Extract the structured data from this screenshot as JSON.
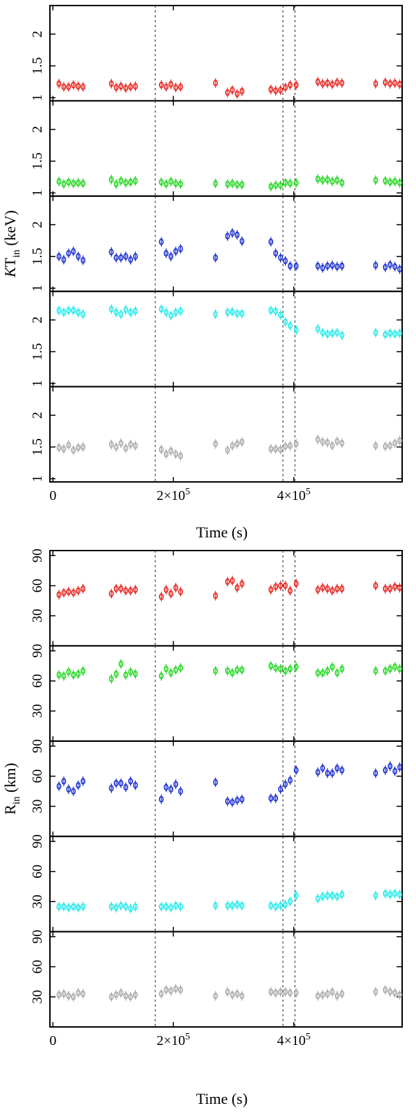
{
  "chart_data": [
    {
      "type": "scatter",
      "title": "",
      "xlabel": "Time (s)",
      "ylabel": {
        "prefix": "K",
        "main": "T",
        "sub": "in",
        "unit": " (keV)"
      },
      "xlim": [
        -5000,
        580000
      ],
      "ylim": [
        0.95,
        2.45
      ],
      "xticks": [
        {
          "value": 0,
          "label": "0",
          "exp": ""
        },
        {
          "value": 200000,
          "label": "2×10",
          "exp": "5"
        },
        {
          "value": 400000,
          "label": "4×10",
          "exp": "5"
        }
      ],
      "yticks": [
        {
          "value": 1,
          "label": "1"
        },
        {
          "value": 1.5,
          "label": "1.5"
        },
        {
          "value": 2,
          "label": "2"
        }
      ],
      "vlines": [
        170000,
        382000,
        402000
      ],
      "series": [
        {
          "name": "panel-1",
          "color": "#e8231e",
          "x": [
            10000,
            18000,
            26000,
            34000,
            42000,
            50000,
            97000,
            105000,
            113000,
            121000,
            129000,
            137000,
            180000,
            188000,
            196000,
            204000,
            212000,
            270000,
            290000,
            298000,
            306000,
            314000,
            362000,
            370000,
            378000,
            386000,
            394000,
            404000,
            440000,
            448000,
            456000,
            464000,
            472000,
            480000,
            536000,
            552000,
            560000,
            568000,
            576000
          ],
          "y": [
            1.22,
            1.17,
            1.17,
            1.2,
            1.18,
            1.17,
            1.22,
            1.16,
            1.18,
            1.15,
            1.17,
            1.18,
            1.2,
            1.17,
            1.21,
            1.16,
            1.17,
            1.23,
            1.08,
            1.12,
            1.06,
            1.1,
            1.13,
            1.11,
            1.12,
            1.16,
            1.2,
            1.2,
            1.25,
            1.22,
            1.23,
            1.21,
            1.24,
            1.23,
            1.22,
            1.24,
            1.22,
            1.23,
            1.21
          ]
        },
        {
          "name": "panel-2",
          "color": "#22d620",
          "x": [
            10000,
            18000,
            26000,
            34000,
            42000,
            50000,
            97000,
            105000,
            113000,
            121000,
            129000,
            137000,
            180000,
            188000,
            196000,
            204000,
            212000,
            270000,
            290000,
            298000,
            306000,
            314000,
            362000,
            370000,
            378000,
            386000,
            394000,
            404000,
            440000,
            448000,
            456000,
            464000,
            472000,
            480000,
            536000,
            552000,
            560000,
            568000,
            576000
          ],
          "y": [
            1.18,
            1.14,
            1.17,
            1.15,
            1.16,
            1.15,
            1.21,
            1.14,
            1.19,
            1.16,
            1.17,
            1.19,
            1.17,
            1.14,
            1.18,
            1.15,
            1.14,
            1.15,
            1.14,
            1.15,
            1.13,
            1.13,
            1.1,
            1.12,
            1.12,
            1.16,
            1.15,
            1.16,
            1.22,
            1.2,
            1.21,
            1.18,
            1.2,
            1.16,
            1.2,
            1.19,
            1.17,
            1.18,
            1.16
          ]
        },
        {
          "name": "panel-3",
          "color": "#1b2fd1",
          "x": [
            10000,
            18000,
            26000,
            34000,
            42000,
            50000,
            97000,
            105000,
            113000,
            121000,
            129000,
            137000,
            180000,
            188000,
            196000,
            204000,
            212000,
            270000,
            290000,
            298000,
            306000,
            314000,
            362000,
            370000,
            378000,
            386000,
            394000,
            404000,
            440000,
            448000,
            456000,
            464000,
            472000,
            480000,
            536000,
            552000,
            560000,
            568000,
            576000
          ],
          "y": [
            1.5,
            1.45,
            1.55,
            1.58,
            1.5,
            1.44,
            1.57,
            1.48,
            1.48,
            1.5,
            1.45,
            1.5,
            1.73,
            1.55,
            1.5,
            1.58,
            1.62,
            1.48,
            1.82,
            1.87,
            1.84,
            1.74,
            1.73,
            1.55,
            1.48,
            1.43,
            1.35,
            1.35,
            1.35,
            1.32,
            1.35,
            1.36,
            1.34,
            1.35,
            1.36,
            1.33,
            1.37,
            1.34,
            1.3
          ]
        },
        {
          "name": "panel-4",
          "color": "#21eaea",
          "x": [
            10000,
            18000,
            26000,
            34000,
            42000,
            50000,
            97000,
            105000,
            113000,
            121000,
            129000,
            137000,
            180000,
            188000,
            196000,
            204000,
            212000,
            270000,
            290000,
            298000,
            306000,
            314000,
            362000,
            370000,
            378000,
            386000,
            394000,
            404000,
            440000,
            448000,
            456000,
            464000,
            472000,
            480000,
            536000,
            552000,
            560000,
            568000,
            576000
          ],
          "y": [
            2.15,
            2.12,
            2.15,
            2.15,
            2.12,
            2.09,
            2.17,
            2.12,
            2.09,
            2.16,
            2.12,
            2.14,
            2.17,
            2.12,
            2.07,
            2.12,
            2.14,
            2.09,
            2.12,
            2.13,
            2.1,
            2.1,
            2.15,
            2.14,
            2.08,
            1.97,
            1.91,
            1.84,
            1.86,
            1.8,
            1.78,
            1.79,
            1.8,
            1.76,
            1.8,
            1.77,
            1.79,
            1.78,
            1.79
          ]
        },
        {
          "name": "panel-5",
          "color": "#a9a9a9",
          "x": [
            10000,
            18000,
            26000,
            34000,
            42000,
            50000,
            97000,
            105000,
            113000,
            121000,
            129000,
            137000,
            180000,
            188000,
            196000,
            204000,
            212000,
            270000,
            290000,
            298000,
            306000,
            314000,
            362000,
            370000,
            378000,
            386000,
            394000,
            404000,
            440000,
            448000,
            456000,
            464000,
            472000,
            480000,
            536000,
            552000,
            560000,
            568000,
            576000
          ],
          "y": [
            1.49,
            1.47,
            1.53,
            1.45,
            1.49,
            1.5,
            1.54,
            1.5,
            1.56,
            1.48,
            1.54,
            1.52,
            1.46,
            1.39,
            1.44,
            1.39,
            1.36,
            1.55,
            1.45,
            1.52,
            1.55,
            1.58,
            1.47,
            1.47,
            1.46,
            1.51,
            1.52,
            1.55,
            1.62,
            1.58,
            1.57,
            1.52,
            1.59,
            1.56,
            1.52,
            1.51,
            1.52,
            1.56,
            1.6
          ]
        }
      ]
    },
    {
      "type": "scatter",
      "title": "",
      "xlabel": "Time (s)",
      "ylabel": {
        "prefix": "",
        "main": "R",
        "sub": "in",
        "unit": " (km)"
      },
      "xlim": [
        -5000,
        580000
      ],
      "ylim": [
        0,
        95
      ],
      "xticks": [
        {
          "value": 0,
          "label": "0",
          "exp": ""
        },
        {
          "value": 200000,
          "label": "2×10",
          "exp": "5"
        },
        {
          "value": 400000,
          "label": "4×10",
          "exp": "5"
        }
      ],
      "yticks": [
        {
          "value": 30,
          "label": "30"
        },
        {
          "value": 60,
          "label": "60"
        },
        {
          "value": 90,
          "label": "90"
        }
      ],
      "vlines": [
        170000,
        382000,
        402000
      ],
      "series": [
        {
          "name": "panel-1",
          "color": "#e8231e",
          "x": [
            10000,
            18000,
            26000,
            34000,
            42000,
            50000,
            97000,
            105000,
            113000,
            121000,
            129000,
            137000,
            180000,
            188000,
            196000,
            204000,
            212000,
            270000,
            290000,
            298000,
            306000,
            314000,
            362000,
            370000,
            378000,
            386000,
            394000,
            404000,
            440000,
            448000,
            456000,
            464000,
            472000,
            480000,
            536000,
            552000,
            560000,
            568000,
            576000
          ],
          "y": [
            51,
            53,
            54,
            53,
            55,
            57,
            52,
            57,
            57,
            55,
            55,
            56,
            49,
            56,
            52,
            58,
            54,
            50,
            64,
            65,
            58,
            62,
            56,
            59,
            60,
            60,
            55,
            62,
            56,
            58,
            57,
            55,
            57,
            57,
            60,
            57,
            57,
            59,
            58
          ]
        },
        {
          "name": "panel-2",
          "color": "#22d620",
          "x": [
            10000,
            18000,
            26000,
            34000,
            42000,
            50000,
            97000,
            105000,
            113000,
            121000,
            129000,
            137000,
            180000,
            188000,
            196000,
            204000,
            212000,
            270000,
            290000,
            298000,
            306000,
            314000,
            362000,
            370000,
            378000,
            386000,
            394000,
            404000,
            440000,
            448000,
            456000,
            464000,
            472000,
            480000,
            536000,
            552000,
            560000,
            568000,
            576000
          ],
          "y": [
            66,
            65,
            69,
            66,
            67,
            70,
            62,
            67,
            77,
            66,
            69,
            67,
            65,
            72,
            68,
            71,
            73,
            70,
            70,
            68,
            71,
            71,
            75,
            73,
            72,
            70,
            72,
            74,
            68,
            68,
            70,
            74,
            68,
            72,
            70,
            70,
            72,
            74,
            72
          ]
        },
        {
          "name": "panel-3",
          "color": "#1b2fd1",
          "x": [
            10000,
            18000,
            26000,
            34000,
            42000,
            50000,
            97000,
            105000,
            113000,
            121000,
            129000,
            137000,
            180000,
            188000,
            196000,
            204000,
            212000,
            270000,
            290000,
            298000,
            306000,
            314000,
            362000,
            370000,
            378000,
            386000,
            394000,
            404000,
            440000,
            448000,
            456000,
            464000,
            472000,
            480000,
            536000,
            552000,
            560000,
            568000,
            576000
          ],
          "y": [
            50,
            55,
            47,
            45,
            51,
            55,
            48,
            53,
            53,
            49,
            55,
            51,
            37,
            49,
            47,
            52,
            45,
            54,
            35,
            34,
            36,
            37,
            38,
            38,
            47,
            52,
            56,
            66,
            64,
            68,
            63,
            63,
            68,
            66,
            63,
            66,
            70,
            65,
            69
          ]
        },
        {
          "name": "panel-4",
          "color": "#21eaea",
          "x": [
            10000,
            18000,
            26000,
            34000,
            42000,
            50000,
            97000,
            105000,
            113000,
            121000,
            129000,
            137000,
            180000,
            188000,
            196000,
            204000,
            212000,
            270000,
            290000,
            298000,
            306000,
            314000,
            362000,
            370000,
            378000,
            386000,
            394000,
            404000,
            440000,
            448000,
            456000,
            464000,
            472000,
            480000,
            536000,
            552000,
            560000,
            568000,
            576000
          ],
          "y": [
            25,
            25,
            24,
            25,
            24,
            25,
            25,
            24,
            26,
            25,
            23,
            25,
            25,
            25,
            24,
            26,
            25,
            26,
            26,
            26,
            27,
            26,
            26,
            25,
            26,
            27,
            30,
            36,
            33,
            35,
            36,
            36,
            35,
            37,
            36,
            38,
            37,
            38,
            37
          ]
        },
        {
          "name": "panel-5",
          "color": "#a9a9a9",
          "x": [
            10000,
            18000,
            26000,
            34000,
            42000,
            50000,
            97000,
            105000,
            113000,
            121000,
            129000,
            137000,
            180000,
            188000,
            196000,
            204000,
            212000,
            270000,
            290000,
            298000,
            306000,
            314000,
            362000,
            370000,
            378000,
            386000,
            394000,
            404000,
            440000,
            448000,
            456000,
            464000,
            472000,
            480000,
            536000,
            552000,
            560000,
            568000,
            576000
          ],
          "y": [
            32,
            33,
            31,
            30,
            34,
            33,
            30,
            32,
            34,
            31,
            30,
            32,
            33,
            37,
            36,
            38,
            37,
            31,
            35,
            32,
            33,
            31,
            35,
            34,
            35,
            35,
            34,
            34,
            31,
            32,
            33,
            35,
            31,
            33,
            35,
            37,
            35,
            34,
            32
          ]
        }
      ]
    }
  ]
}
